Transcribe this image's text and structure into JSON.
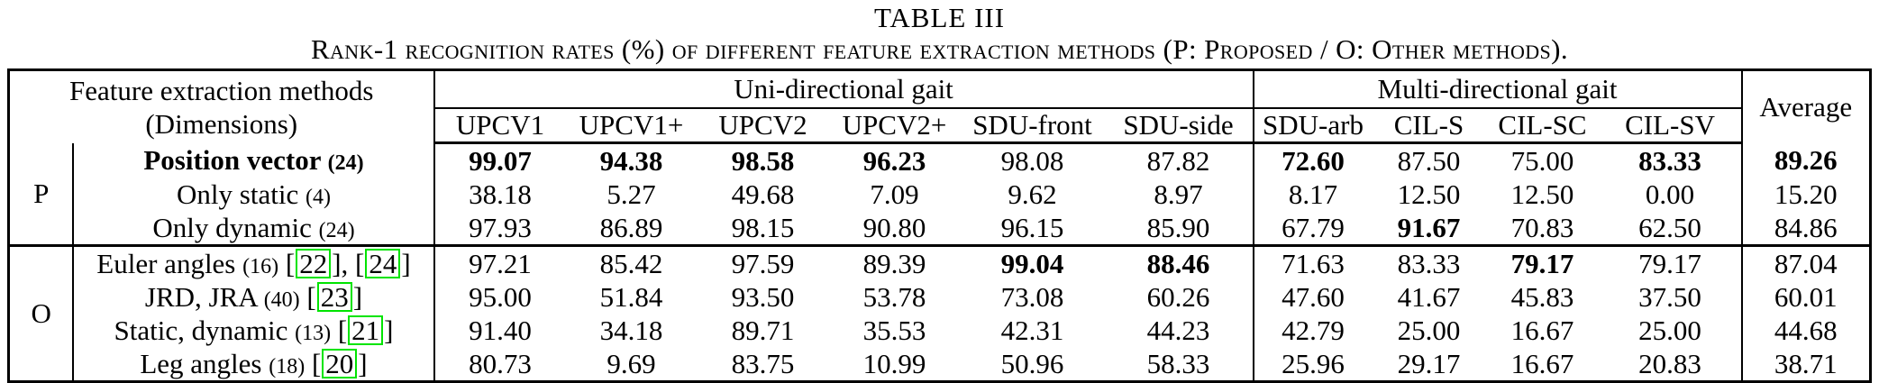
{
  "title": "TABLE III",
  "subtitle": "Rank-1 recognition rates (%) of different feature extraction methods (P: Proposed / O: Other methods).",
  "colors": {
    "text": "#000000",
    "background": "#ffffff",
    "citation_box": "#00e400"
  },
  "table": {
    "header": {
      "feature_col_line1": "Feature extraction methods",
      "feature_col_line2": "(Dimensions)",
      "groups": [
        {
          "label": "Uni-directional gait",
          "cols": [
            "UPCV1",
            "UPCV1+",
            "UPCV2",
            "UPCV2+",
            "SDU-front",
            "SDU-side"
          ]
        },
        {
          "label": "Multi-directional gait",
          "cols": [
            "SDU-arb",
            "CIL-S",
            "CIL-SC",
            "CIL-SV"
          ]
        }
      ],
      "average": "Average"
    },
    "sections": [
      {
        "group": "P",
        "rows": [
          {
            "method": "Position vector",
            "dims": "(24)",
            "bold_method": true,
            "refs": [],
            "values": [
              "99.07",
              "94.38",
              "98.58",
              "96.23",
              "98.08",
              "87.82",
              "72.60",
              "87.50",
              "75.00",
              "83.33",
              "89.26"
            ],
            "bold_values": [
              1,
              1,
              1,
              1,
              0,
              0,
              1,
              0,
              0,
              1,
              1
            ]
          },
          {
            "method": "Only static",
            "dims": "(4)",
            "bold_method": false,
            "refs": [],
            "values": [
              "38.18",
              "5.27",
              "49.68",
              "7.09",
              "9.62",
              "8.97",
              "8.17",
              "12.50",
              "12.50",
              "0.00",
              "15.20"
            ],
            "bold_values": [
              0,
              0,
              0,
              0,
              0,
              0,
              0,
              0,
              0,
              0,
              0
            ]
          },
          {
            "method": "Only dynamic",
            "dims": "(24)",
            "bold_method": false,
            "refs": [],
            "values": [
              "97.93",
              "86.89",
              "98.15",
              "90.80",
              "96.15",
              "85.90",
              "67.79",
              "91.67",
              "70.83",
              "62.50",
              "84.86"
            ],
            "bold_values": [
              0,
              0,
              0,
              0,
              0,
              0,
              0,
              1,
              0,
              0,
              0
            ]
          }
        ]
      },
      {
        "group": "O",
        "rows": [
          {
            "method": "Euler angles",
            "dims": "(16)",
            "bold_method": false,
            "refs": [
              "22",
              "24"
            ],
            "values": [
              "97.21",
              "85.42",
              "97.59",
              "89.39",
              "99.04",
              "88.46",
              "71.63",
              "83.33",
              "79.17",
              "79.17",
              "87.04"
            ],
            "bold_values": [
              0,
              0,
              0,
              0,
              1,
              1,
              0,
              0,
              1,
              0,
              0
            ]
          },
          {
            "method": "JRD, JRA",
            "dims": "(40)",
            "bold_method": false,
            "refs": [
              "23"
            ],
            "values": [
              "95.00",
              "51.84",
              "93.50",
              "53.78",
              "73.08",
              "60.26",
              "47.60",
              "41.67",
              "45.83",
              "37.50",
              "60.01"
            ],
            "bold_values": [
              0,
              0,
              0,
              0,
              0,
              0,
              0,
              0,
              0,
              0,
              0
            ]
          },
          {
            "method": "Static, dynamic",
            "dims": "(13)",
            "bold_method": false,
            "refs": [
              "21"
            ],
            "values": [
              "91.40",
              "34.18",
              "89.71",
              "35.53",
              "42.31",
              "44.23",
              "42.79",
              "25.00",
              "16.67",
              "25.00",
              "44.68"
            ],
            "bold_values": [
              0,
              0,
              0,
              0,
              0,
              0,
              0,
              0,
              0,
              0,
              0
            ]
          },
          {
            "method": "Leg angles",
            "dims": "(18)",
            "bold_method": false,
            "refs": [
              "20"
            ],
            "values": [
              "80.73",
              "9.69",
              "83.75",
              "10.99",
              "50.96",
              "58.33",
              "25.96",
              "29.17",
              "16.67",
              "20.83",
              "38.71"
            ],
            "bold_values": [
              0,
              0,
              0,
              0,
              0,
              0,
              0,
              0,
              0,
              0,
              0
            ]
          }
        ]
      }
    ]
  }
}
